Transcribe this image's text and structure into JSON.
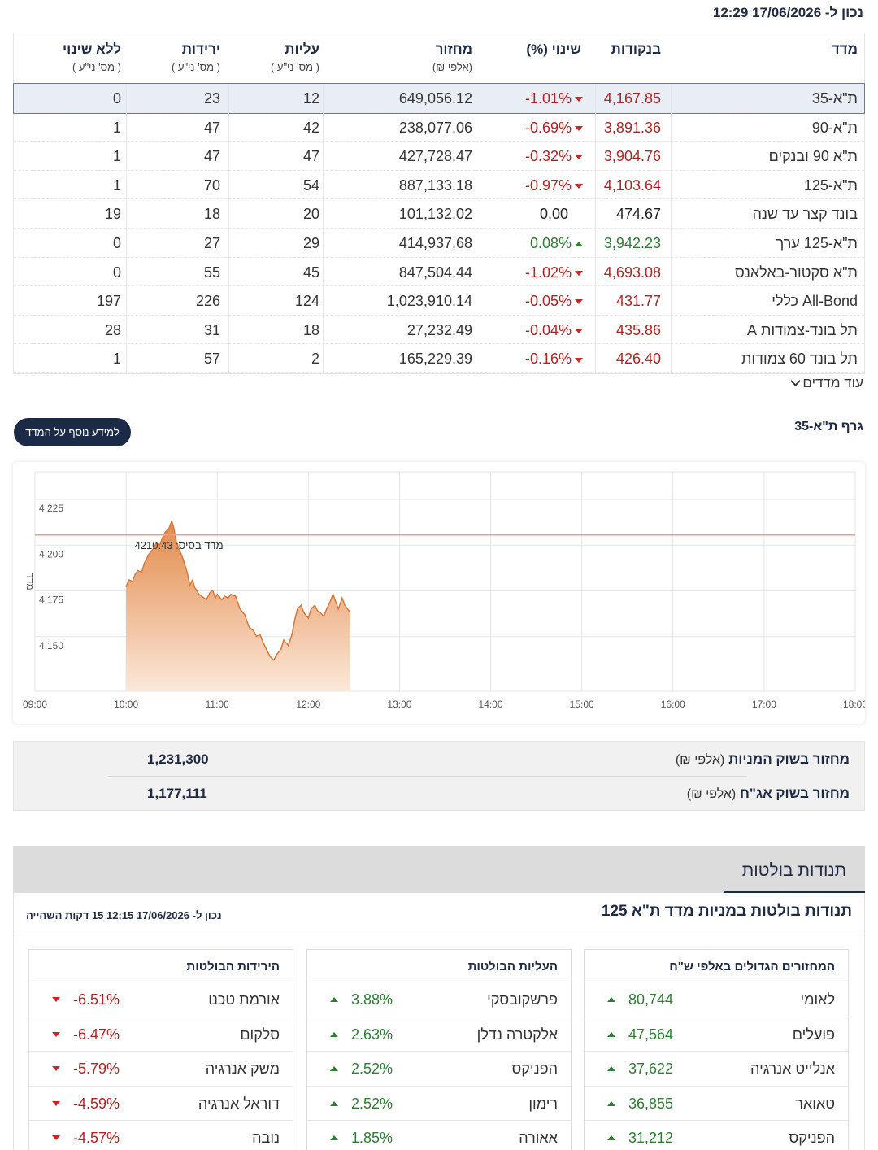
{
  "timestamp": "נכון ל- 17/06/2026 12:29",
  "index_table": {
    "headers": {
      "index": "מדד",
      "points": "בנקודות",
      "change": "שינוי (%)",
      "turnover": "מחזור",
      "turnover_unit": "(אלפי ₪)",
      "advancers": "עליות",
      "advancers_unit": "( מס' ני\"ע )",
      "decliners": "ירידות",
      "decliners_unit": "( מס' ני\"ע )",
      "unchanged": "ללא שינוי",
      "unchanged_unit": "( מס' ני\"ע )"
    },
    "rows": [
      {
        "name": "ת\"א-35",
        "points": "4,167.85",
        "change": "-1.01%",
        "dir": "down",
        "turnover": "649,056.12",
        "adv": "12",
        "dec": "23",
        "unch": "0"
      },
      {
        "name": "ת\"א-90",
        "points": "3,891.36",
        "change": "-0.69%",
        "dir": "down",
        "turnover": "238,077.06",
        "adv": "42",
        "dec": "47",
        "unch": "1"
      },
      {
        "name": "ת\"א 90 ובנקים",
        "points": "3,904.76",
        "change": "-0.32%",
        "dir": "down",
        "turnover": "427,728.47",
        "adv": "47",
        "dec": "47",
        "unch": "1"
      },
      {
        "name": "ת\"א-125",
        "points": "4,103.64",
        "change": "-0.97%",
        "dir": "down",
        "turnover": "887,133.18",
        "adv": "54",
        "dec": "70",
        "unch": "1"
      },
      {
        "name": "בונד קצר עד שנה",
        "points": "474.67",
        "change": "0.00",
        "dir": "flat",
        "turnover": "101,132.02",
        "adv": "20",
        "dec": "18",
        "unch": "19"
      },
      {
        "name": "ת\"א-125 ערך",
        "points": "3,942.23",
        "change": "0.08%",
        "dir": "up",
        "turnover": "414,937.68",
        "adv": "29",
        "dec": "27",
        "unch": "0"
      },
      {
        "name": "ת\"א סקטור-באלאנס",
        "points": "4,693.08",
        "change": "-1.02%",
        "dir": "down",
        "turnover": "847,504.44",
        "adv": "45",
        "dec": "55",
        "unch": "0"
      },
      {
        "name": "All-Bond כללי",
        "points": "431.77",
        "change": "-0.05%",
        "dir": "down",
        "turnover": "1,023,910.14",
        "adv": "124",
        "dec": "226",
        "unch": "197"
      },
      {
        "name": "תל בונד-צמודות A",
        "points": "435.86",
        "change": "-0.04%",
        "dir": "down",
        "turnover": "27,232.49",
        "adv": "18",
        "dec": "31",
        "unch": "28"
      },
      {
        "name": "תל בונד 60 צמודות",
        "points": "426.40",
        "change": "-0.16%",
        "dir": "down",
        "turnover": "165,229.39",
        "adv": "2",
        "dec": "57",
        "unch": "1"
      }
    ]
  },
  "more_indices": "עוד מדדים",
  "chart_section": {
    "title": "גרף ת\"א-35",
    "info_button": "למידע נוסף על המדד"
  },
  "chart_data": {
    "type": "area",
    "ylabel": "מדד",
    "x_ticks": [
      "09:00",
      "10:00",
      "11:00",
      "12:00",
      "13:00",
      "14:00",
      "15:00",
      "16:00",
      "17:00",
      "18:00"
    ],
    "y_ticks": [
      "4 150",
      "4 175",
      "4 200",
      "4 225"
    ],
    "xlim_hours": [
      9,
      18
    ],
    "ylim": [
      4125,
      4245
    ],
    "base_label": "מדד בסיס: 4210.43",
    "base_value": 4210.43,
    "colors": {
      "fill_top": "#e38a4a",
      "fill_bottom": "#fbe8da",
      "line": "#d9773a",
      "base_line": "#e8a090",
      "grid": "#e6e6e6"
    },
    "series": [
      {
        "x": [
          10.0,
          10.03,
          10.07,
          10.1,
          10.13,
          10.17,
          10.2,
          10.25,
          10.3,
          10.33,
          10.37,
          10.4,
          10.43,
          10.47,
          10.5,
          10.52,
          10.55,
          10.58,
          10.62,
          10.67,
          10.7,
          10.73,
          10.75,
          10.8,
          10.83,
          10.88,
          10.92,
          10.95,
          10.98,
          11.0,
          11.05,
          11.08,
          11.12,
          11.15,
          11.2,
          11.25,
          11.3,
          11.35,
          11.4,
          11.43,
          11.47,
          11.5,
          11.55,
          11.58,
          11.62,
          11.65,
          11.7,
          11.73,
          11.78,
          11.82,
          11.85,
          11.88,
          11.92,
          11.95,
          12.0,
          12.03,
          12.07,
          12.1,
          12.13,
          12.17,
          12.2,
          12.23,
          12.27,
          12.3,
          12.33,
          12.37,
          12.4,
          12.43,
          12.46
        ],
        "y": [
          4182,
          4186,
          4185,
          4189,
          4191,
          4190,
          4195,
          4200,
          4203,
          4206,
          4205,
          4209,
          4212,
          4214,
          4218,
          4215,
          4207,
          4203,
          4198,
          4190,
          4183,
          4186,
          4182,
          4178,
          4177,
          4175,
          4179,
          4180,
          4176,
          4178,
          4175,
          4177,
          4176,
          4178,
          4177,
          4170,
          4167,
          4160,
          4158,
          4155,
          4156,
          4152,
          4147,
          4144,
          4142,
          4145,
          4148,
          4153,
          4150,
          4156,
          4164,
          4170,
          4172,
          4168,
          4165,
          4170,
          4172,
          4169,
          4168,
          4166,
          4170,
          4173,
          4178,
          4174,
          4170,
          4176,
          4172,
          4170,
          4168
        ]
      }
    ]
  },
  "turnover_box": {
    "stocks_label": "מחזור בשוק המניות",
    "stocks_unit": "(אלפי ₪)",
    "stocks_value": "1,231,300",
    "bonds_label": "מחזור בשוק אג\"ח",
    "bonds_unit": "(אלפי ₪)",
    "bonds_value": "1,177,111"
  },
  "volatility": {
    "tab_label": "תנודות בולטות",
    "title": "תנודות בולטות במניות מדד ת\"א 125",
    "timestamp": "נכון ל- 17/06/2026 12:15 15 דקות השהייה",
    "tables": [
      {
        "header": "המחזורים הגדולים באלפי ש\"ח",
        "rows": [
          {
            "name": "לאומי",
            "value": "80,744",
            "dir": "up"
          },
          {
            "name": "פועלים",
            "value": "47,564",
            "dir": "up"
          },
          {
            "name": "אנלייט אנרגיה",
            "value": "37,622",
            "dir": "up"
          },
          {
            "name": "טאואר",
            "value": "36,855",
            "dir": "up"
          },
          {
            "name": "הפניקס",
            "value": "31,212",
            "dir": "up"
          }
        ]
      },
      {
        "header": "העליות הבולטות",
        "rows": [
          {
            "name": "פרשקובסקי",
            "value": "3.88%",
            "dir": "up"
          },
          {
            "name": "אלקטרה נדלן",
            "value": "2.63%",
            "dir": "up"
          },
          {
            "name": "הפניקס",
            "value": "2.52%",
            "dir": "up"
          },
          {
            "name": "רימון",
            "value": "2.52%",
            "dir": "up"
          },
          {
            "name": "אאורה",
            "value": "1.85%",
            "dir": "up"
          }
        ]
      },
      {
        "header": "הירידות הבולטות",
        "rows": [
          {
            "name": "אורמת טכנו",
            "value": "-6.51%",
            "dir": "down"
          },
          {
            "name": "סלקום",
            "value": "-6.47%",
            "dir": "down"
          },
          {
            "name": "משק אנרגיה",
            "value": "-5.79%",
            "dir": "down"
          },
          {
            "name": "דוראל אנרגיה",
            "value": "-4.59%",
            "dir": "down"
          },
          {
            "name": "נובה",
            "value": "-4.57%",
            "dir": "down"
          }
        ]
      }
    ]
  }
}
